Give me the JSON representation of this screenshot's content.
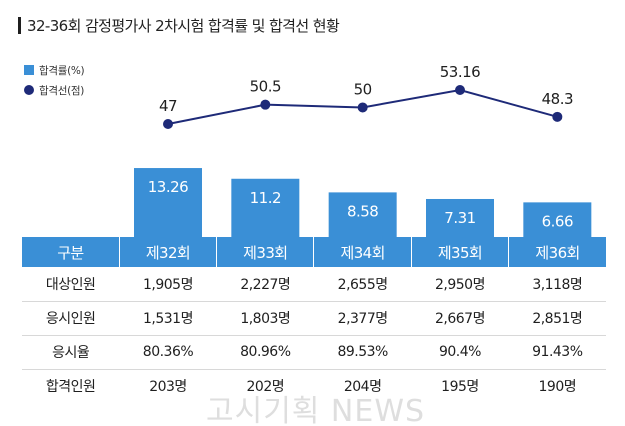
{
  "title": "32-36회 감정평가사 2차시험 합격률 및 합격선 현황",
  "legend": {
    "bar_label": "합격률(%)",
    "line_label": "합격선(점)"
  },
  "colors": {
    "bar": "#3a8fd6",
    "line": "#1e2a78",
    "header_bg": "#3a8fd6"
  },
  "chart_data": {
    "type": "bar",
    "categories": [
      "제32회",
      "제33회",
      "제34회",
      "제35회",
      "제36회"
    ],
    "series": [
      {
        "name": "합격률(%)",
        "type": "bar",
        "values": [
          13.26,
          11.2,
          8.58,
          7.31,
          6.66
        ]
      },
      {
        "name": "합격선(점)",
        "type": "line",
        "values": [
          47,
          50.5,
          50,
          53.16,
          48.3
        ]
      }
    ],
    "bar_labels": [
      "13.26",
      "11.2",
      "8.58",
      "7.31",
      "6.66"
    ],
    "line_labels": [
      "47",
      "50.5",
      "50",
      "53.16",
      "48.3"
    ],
    "grid": false,
    "legend_position": "top-left"
  },
  "table": {
    "header": [
      "구분",
      "제32회",
      "제33회",
      "제34회",
      "제35회",
      "제36회"
    ],
    "rows": [
      [
        "대상인원",
        "1,905명",
        "2,227명",
        "2,655명",
        "2,950명",
        "3,118명"
      ],
      [
        "응시인원",
        "1,531명",
        "1,803명",
        "2,377명",
        "2,667명",
        "2,851명"
      ],
      [
        "응시율",
        "80.36%",
        "80.96%",
        "89.53%",
        "90.4%",
        "91.43%"
      ],
      [
        "합격인원",
        "203명",
        "202명",
        "204명",
        "195명",
        "190명"
      ]
    ]
  },
  "watermark": "고시기획 NEWS"
}
